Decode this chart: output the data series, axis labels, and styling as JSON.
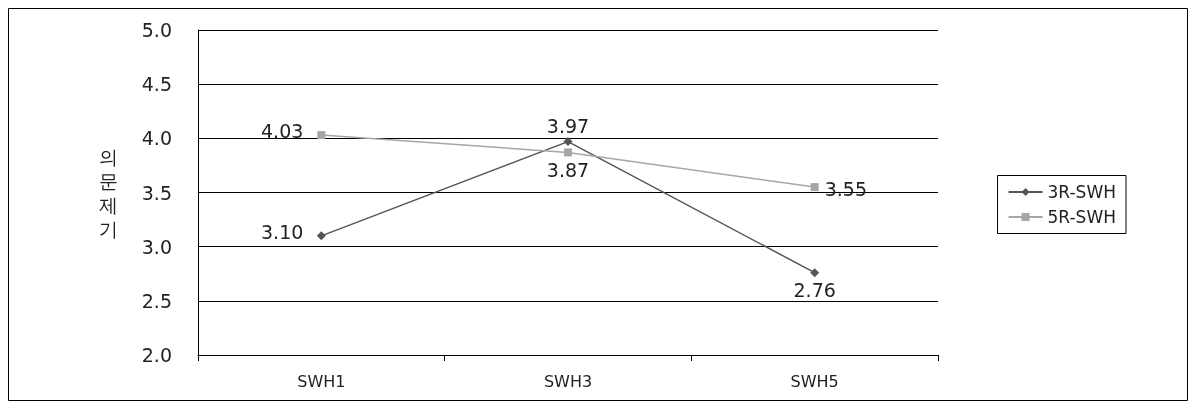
{
  "chart_data": {
    "type": "line",
    "ylabel": "의문제기",
    "categories": [
      "SWH1",
      "SWH3",
      "SWH5"
    ],
    "series": [
      {
        "name": "3R-SWH",
        "color": "#555555",
        "marker": "diamond",
        "values": [
          3.1,
          3.97,
          2.76
        ],
        "value_labels": [
          "3.10",
          "3.97",
          "2.76"
        ]
      },
      {
        "name": "5R-SWH",
        "color": "#a6a6a6",
        "marker": "square",
        "values": [
          4.03,
          3.87,
          3.55
        ],
        "value_labels": [
          "4.03",
          "3.87",
          "3.55"
        ]
      }
    ],
    "ylim": [
      2.0,
      5.0
    ],
    "yticks": [
      {
        "value": 2,
        "label": "2.0"
      },
      {
        "value": 2.5,
        "label": "2.5"
      },
      {
        "value": 3,
        "label": "3.0"
      },
      {
        "value": 3.5,
        "label": "3.5"
      },
      {
        "value": 4,
        "label": "4.0"
      },
      {
        "value": 4.5,
        "label": "4.5"
      },
      {
        "value": 5,
        "label": "5.0"
      }
    ],
    "grid": "y",
    "legend": "right"
  }
}
